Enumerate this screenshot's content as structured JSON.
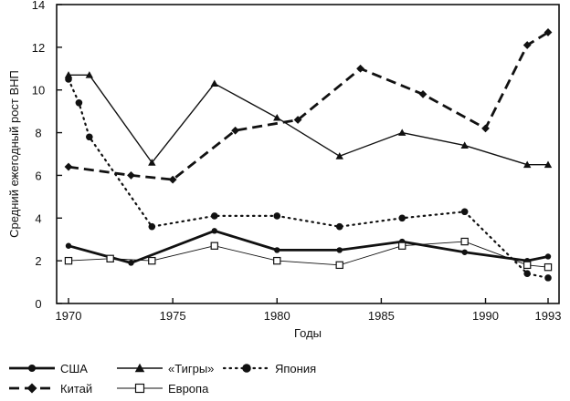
{
  "chart_data": {
    "type": "line",
    "xlabel": "Годы",
    "ylabel": "Средний ежегодный рост ВНП",
    "xlim": [
      1970,
      1993
    ],
    "ylim": [
      0,
      14
    ],
    "x_ticks": [
      "1970",
      "1975",
      "1980",
      "1985",
      "1990",
      "1993"
    ],
    "y_ticks": [
      "0",
      "2",
      "4",
      "6",
      "8",
      "10",
      "12",
      "14"
    ],
    "grid": false,
    "legend_position": "bottom-left",
    "series": [
      {
        "name": "США",
        "color": "#111111",
        "line_style": "solid-thick",
        "marker": "circle",
        "points": [
          [
            1970,
            2.7
          ],
          [
            1973,
            1.9
          ],
          [
            1977,
            3.4
          ],
          [
            1980,
            2.5
          ],
          [
            1983,
            2.5
          ],
          [
            1986,
            2.9
          ],
          [
            1989,
            2.4
          ],
          [
            1992,
            2.0
          ],
          [
            1993,
            2.2
          ]
        ]
      },
      {
        "name": "«Тигры»",
        "color": "#111111",
        "line_style": "solid",
        "marker": "triangle",
        "points": [
          [
            1970,
            10.7
          ],
          [
            1971,
            10.7
          ],
          [
            1974,
            6.6
          ],
          [
            1977,
            10.3
          ],
          [
            1980,
            8.7
          ],
          [
            1983,
            6.9
          ],
          [
            1986,
            8.0
          ],
          [
            1989,
            7.4
          ],
          [
            1992,
            6.5
          ],
          [
            1993,
            6.5
          ]
        ]
      },
      {
        "name": "Япония",
        "color": "#111111",
        "line_style": "dotted",
        "marker": "filled-circle",
        "points": [
          [
            1970,
            10.5
          ],
          [
            1970.5,
            9.4
          ],
          [
            1971,
            7.8
          ],
          [
            1974,
            3.6
          ],
          [
            1977,
            4.1
          ],
          [
            1980,
            4.1
          ],
          [
            1983,
            3.6
          ],
          [
            1986,
            4.0
          ],
          [
            1989,
            4.3
          ],
          [
            1992,
            1.4
          ],
          [
            1993,
            1.2
          ]
        ]
      },
      {
        "name": "Китай",
        "color": "#111111",
        "line_style": "dashed",
        "marker": "diamond",
        "points": [
          [
            1970,
            6.4
          ],
          [
            1973,
            6.0
          ],
          [
            1975,
            5.8
          ],
          [
            1978,
            8.1
          ],
          [
            1981,
            8.6
          ],
          [
            1984,
            11.0
          ],
          [
            1987,
            9.8
          ],
          [
            1990,
            8.2
          ],
          [
            1992,
            12.1
          ],
          [
            1993,
            12.7
          ]
        ]
      },
      {
        "name": "Европа",
        "color": "#111111",
        "line_style": "solid-thin",
        "marker": "open-square",
        "points": [
          [
            1970,
            2.0
          ],
          [
            1972,
            2.1
          ],
          [
            1974,
            2.0
          ],
          [
            1977,
            2.7
          ],
          [
            1980,
            2.0
          ],
          [
            1983,
            1.8
          ],
          [
            1986,
            2.7
          ],
          [
            1989,
            2.9
          ],
          [
            1992,
            1.8
          ],
          [
            1993,
            1.7
          ]
        ]
      }
    ]
  }
}
